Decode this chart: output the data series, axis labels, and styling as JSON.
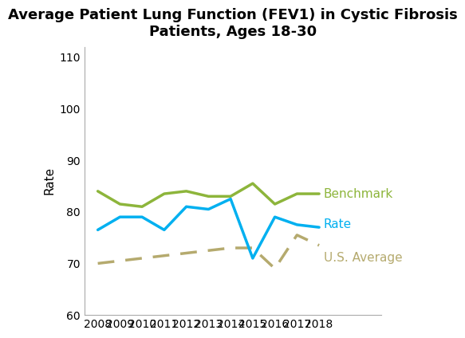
{
  "title": "Average Patient Lung Function (FEV1) in Cystic Fibrosis\nPatients, Ages 18-30",
  "ylabel": "Rate",
  "years": [
    2008,
    2009,
    2010,
    2011,
    2012,
    2013,
    2014,
    2015,
    2016,
    2017,
    2018
  ],
  "benchmark": [
    84.0,
    81.5,
    81.0,
    83.5,
    84.0,
    83.0,
    83.0,
    85.5,
    81.5,
    83.5,
    83.5
  ],
  "rate": [
    76.5,
    79.0,
    79.0,
    76.5,
    81.0,
    80.5,
    82.5,
    71.0,
    79.0,
    77.5,
    77.0
  ],
  "us_average": [
    70.0,
    70.5,
    71.0,
    71.5,
    72.0,
    72.5,
    73.0,
    73.0,
    69.0,
    75.5,
    73.5
  ],
  "benchmark_color": "#8db53b",
  "rate_color": "#00b0f0",
  "us_average_color": "#b5aa6e",
  "ylim": [
    60,
    112
  ],
  "yticks": [
    60,
    70,
    80,
    90,
    100,
    110
  ],
  "title_fontsize": 13,
  "ylabel_fontsize": 11,
  "tick_fontsize": 10,
  "annotation_fontsize": 11,
  "line_width": 2.5,
  "background_color": "#ffffff",
  "benchmark_label": "Benchmark",
  "rate_label": "Rate",
  "us_avg_label": "U.S. Average"
}
